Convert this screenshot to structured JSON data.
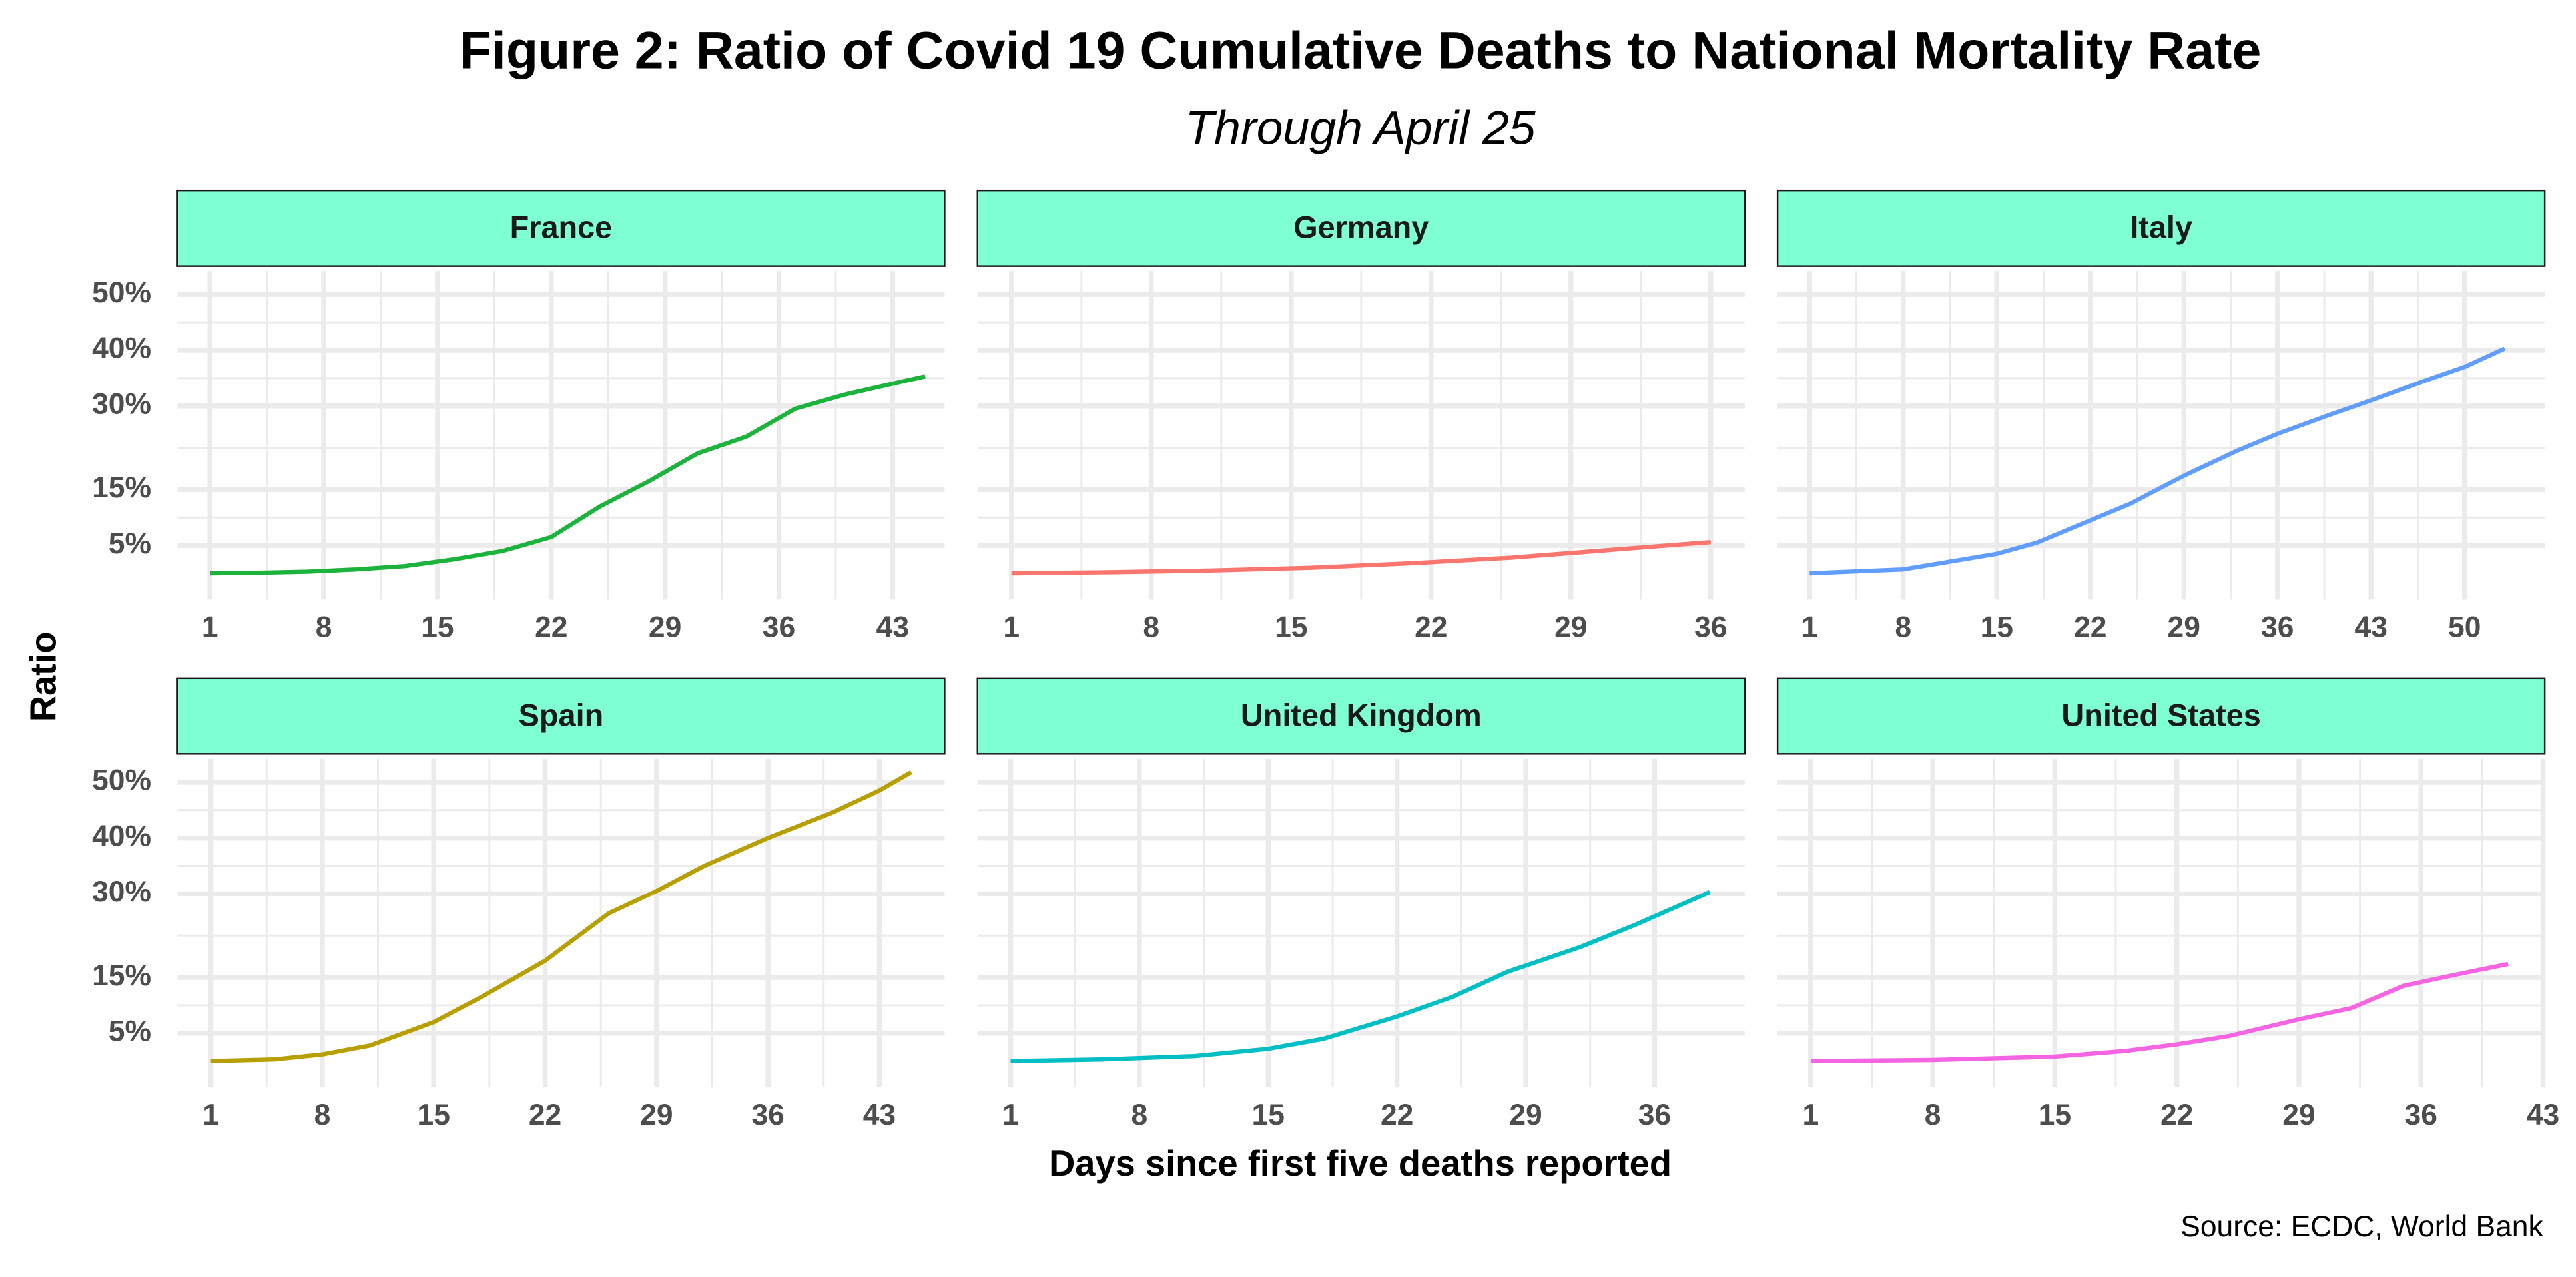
{
  "title": "Figure 2: Ratio of Covid 19 Cumulative Deaths to National Mortality Rate",
  "subtitle": "Through April 25",
  "x_label": "Days since first five deaths reported",
  "y_label": "Ratio",
  "source": "Source: ECDC, World Bank",
  "ylim": [
    -4.7,
    54.2
  ],
  "yticks": [
    {
      "value": 5,
      "label": "5%"
    },
    {
      "value": 15,
      "label": "15%"
    },
    {
      "value": 30,
      "label": "30%"
    },
    {
      "value": 40,
      "label": "40%"
    },
    {
      "value": 50,
      "label": "50%"
    }
  ],
  "grid": true,
  "chart_data": [
    {
      "type": "line",
      "title": "France",
      "color": "#1cb33c",
      "xlim": [
        -1,
        46.2
      ],
      "xticks": [
        1,
        8,
        15,
        22,
        29,
        36,
        43
      ],
      "x": [
        1,
        4,
        7,
        10,
        13,
        16,
        19,
        22,
        25,
        28,
        31,
        34,
        37,
        40,
        43,
        45
      ],
      "values": [
        0,
        0.1,
        0.3,
        0.7,
        1.3,
        2.5,
        4,
        6.5,
        12,
        16.5,
        21.5,
        24.5,
        29.5,
        32,
        34,
        35.3
      ]
    },
    {
      "type": "line",
      "title": "Germany",
      "color": "#f8766d",
      "xlim": [
        -0.7,
        37.7
      ],
      "xticks": [
        1,
        8,
        15,
        22,
        29,
        36
      ],
      "x": [
        1,
        6,
        11,
        16,
        21,
        26,
        31,
        36
      ],
      "values": [
        0,
        0.2,
        0.5,
        1,
        1.8,
        2.8,
        4.2,
        5.6
      ]
    },
    {
      "type": "line",
      "title": "Italy",
      "color": "#619cff",
      "xlim": [
        -1.4,
        56
      ],
      "xticks": [
        1,
        8,
        15,
        22,
        29,
        36,
        43,
        50
      ],
      "x": [
        1,
        8,
        15,
        18,
        22,
        25,
        29,
        33,
        36,
        40,
        43,
        47,
        50,
        53
      ],
      "values": [
        0,
        0.7,
        3.5,
        5.5,
        9.5,
        12.5,
        17.5,
        22,
        25,
        28.5,
        31,
        34.5,
        37,
        40.3
      ]
    },
    {
      "type": "line",
      "title": "Spain",
      "color": "#b79f00",
      "xlim": [
        -1.1,
        47.1
      ],
      "xticks": [
        1,
        8,
        15,
        22,
        29,
        36,
        43
      ],
      "x": [
        1,
        5,
        8,
        11,
        15,
        18,
        22,
        26,
        29,
        32,
        36,
        40,
        43,
        45
      ],
      "values": [
        0,
        0.3,
        1.2,
        2.8,
        7,
        11.5,
        18,
        26.5,
        30.5,
        35,
        40,
        44.5,
        48.5,
        51.8
      ]
    },
    {
      "type": "line",
      "title": "United Kingdom",
      "color": "#00bfc4",
      "xlim": [
        -0.8,
        40.9
      ],
      "xticks": [
        1,
        8,
        15,
        22,
        29,
        36
      ],
      "x": [
        1,
        6,
        11,
        15,
        18,
        22,
        25,
        28,
        32,
        35,
        39
      ],
      "values": [
        0,
        0.3,
        0.9,
        2.2,
        4,
        8,
        11.5,
        16,
        20.5,
        24.5,
        30.3
      ]
    },
    {
      "type": "line",
      "title": "United States",
      "color": "#f564e3",
      "xlim": [
        -0.9,
        43.1
      ],
      "xticks": [
        1,
        8,
        15,
        22,
        29,
        36,
        43
      ],
      "x": [
        1,
        8,
        15,
        19,
        22,
        25,
        29,
        32,
        35,
        38,
        41
      ],
      "values": [
        0,
        0.2,
        0.8,
        1.8,
        3,
        4.5,
        7.5,
        9.5,
        13.5,
        15.5,
        17.4
      ]
    }
  ]
}
